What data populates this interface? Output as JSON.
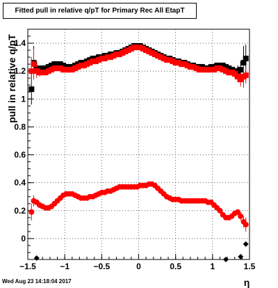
{
  "title": "Fitted pull in relative q/pT for Primary Rec All EtapT",
  "timestamp": "Wed Aug 23 14:18:04 2017",
  "chart_data": {
    "type": "scatter",
    "title": "Fitted pull in relative q/pT for Primary Rec All EtapT",
    "xlabel": "η",
    "ylabel": "pull in relative q/pT",
    "xlim": [
      -1.5,
      1.5
    ],
    "ylim": [
      -0.15,
      1.5
    ],
    "grid": true,
    "xticks": [
      -1.5,
      -1,
      -0.5,
      0,
      0.5,
      1,
      1.5
    ],
    "xtick_labels": [
      "−1.5",
      "−1",
      "−0.5",
      "0",
      "0.5",
      "1",
      "1.5"
    ],
    "yticks": [
      0,
      0.2,
      0.4,
      0.6,
      0.8,
      1,
      1.2,
      1.4
    ],
    "ytick_labels": [
      "0",
      "0.2",
      "0.4",
      "0.6",
      "0.8",
      "1",
      "1.2",
      "1.4"
    ],
    "series": [
      {
        "role": "sigma-black",
        "marker": "square",
        "color": "#000000",
        "x": [
          -1.45,
          -1.42,
          -1.38,
          -1.34,
          -1.3,
          -1.26,
          -1.22,
          -1.18,
          -1.14,
          -1.1,
          -1.06,
          -1.02,
          -0.98,
          -0.94,
          -0.9,
          -0.86,
          -0.82,
          -0.78,
          -0.74,
          -0.7,
          -0.66,
          -0.62,
          -0.58,
          -0.54,
          -0.5,
          -0.46,
          -0.42,
          -0.38,
          -0.34,
          -0.3,
          -0.26,
          -0.22,
          -0.18,
          -0.14,
          -0.1,
          -0.06,
          -0.02,
          0.02,
          0.06,
          0.1,
          0.14,
          0.18,
          0.22,
          0.26,
          0.3,
          0.34,
          0.38,
          0.42,
          0.46,
          0.5,
          0.54,
          0.58,
          0.62,
          0.66,
          0.7,
          0.74,
          0.78,
          0.82,
          0.86,
          0.9,
          0.94,
          0.98,
          1.02,
          1.06,
          1.1,
          1.14,
          1.18,
          1.22,
          1.26,
          1.3,
          1.34,
          1.38,
          1.42,
          1.45
        ],
        "y": [
          1.07,
          1.26,
          1.22,
          1.21,
          1.22,
          1.22,
          1.23,
          1.24,
          1.25,
          1.25,
          1.25,
          1.24,
          1.23,
          1.23,
          1.23,
          1.24,
          1.25,
          1.26,
          1.26,
          1.27,
          1.28,
          1.29,
          1.29,
          1.3,
          1.3,
          1.31,
          1.31,
          1.32,
          1.32,
          1.33,
          1.33,
          1.34,
          1.35,
          1.36,
          1.37,
          1.38,
          1.38,
          1.38,
          1.37,
          1.36,
          1.35,
          1.34,
          1.33,
          1.32,
          1.31,
          1.3,
          1.29,
          1.29,
          1.28,
          1.27,
          1.27,
          1.26,
          1.26,
          1.25,
          1.24,
          1.24,
          1.23,
          1.23,
          1.23,
          1.22,
          1.22,
          1.23,
          1.23,
          1.24,
          1.24,
          1.24,
          1.23,
          1.22,
          1.21,
          1.2,
          1.2,
          1.21,
          1.26,
          1.29
        ],
        "err": [
          0.11,
          0.12,
          0.05,
          0.03,
          0.02,
          0.02,
          0.02,
          0.02,
          0.02,
          0.02,
          0.02,
          0.02,
          0.02,
          0.02,
          0.02,
          0.02,
          0.02,
          0.02,
          0.02,
          0.02,
          0.02,
          0.02,
          0.02,
          0.02,
          0.02,
          0.02,
          0.02,
          0.02,
          0.02,
          0.02,
          0.02,
          0.02,
          0.02,
          0.02,
          0.02,
          0.02,
          0.02,
          0.02,
          0.02,
          0.02,
          0.02,
          0.02,
          0.02,
          0.02,
          0.02,
          0.02,
          0.02,
          0.02,
          0.02,
          0.02,
          0.02,
          0.02,
          0.02,
          0.02,
          0.02,
          0.02,
          0.02,
          0.02,
          0.02,
          0.02,
          0.02,
          0.02,
          0.02,
          0.02,
          0.02,
          0.02,
          0.02,
          0.02,
          0.02,
          0.03,
          0.04,
          0.06,
          0.12,
          0.1
        ]
      },
      {
        "role": "sigma-red",
        "marker": "square",
        "color": "#ff0000",
        "x": [
          -1.45,
          -1.42,
          -1.38,
          -1.34,
          -1.3,
          -1.26,
          -1.22,
          -1.18,
          -1.14,
          -1.1,
          -1.06,
          -1.02,
          -0.98,
          -0.94,
          -0.9,
          -0.86,
          -0.82,
          -0.78,
          -0.74,
          -0.7,
          -0.66,
          -0.62,
          -0.58,
          -0.54,
          -0.5,
          -0.46,
          -0.42,
          -0.38,
          -0.34,
          -0.3,
          -0.26,
          -0.22,
          -0.18,
          -0.14,
          -0.1,
          -0.06,
          -0.02,
          0.02,
          0.06,
          0.1,
          0.14,
          0.18,
          0.22,
          0.26,
          0.3,
          0.34,
          0.38,
          0.42,
          0.46,
          0.5,
          0.54,
          0.58,
          0.62,
          0.66,
          0.7,
          0.74,
          0.78,
          0.82,
          0.86,
          0.9,
          0.94,
          0.98,
          1.02,
          1.06,
          1.1,
          1.14,
          1.18,
          1.22,
          1.26,
          1.3,
          1.34,
          1.38,
          1.42,
          1.45
        ],
        "y": [
          1.2,
          1.25,
          1.2,
          1.19,
          1.19,
          1.19,
          1.2,
          1.21,
          1.22,
          1.22,
          1.22,
          1.21,
          1.21,
          1.21,
          1.21,
          1.22,
          1.23,
          1.24,
          1.24,
          1.25,
          1.26,
          1.27,
          1.27,
          1.28,
          1.29,
          1.29,
          1.3,
          1.3,
          1.31,
          1.32,
          1.32,
          1.33,
          1.34,
          1.35,
          1.36,
          1.37,
          1.37,
          1.37,
          1.36,
          1.35,
          1.34,
          1.33,
          1.32,
          1.31,
          1.3,
          1.29,
          1.28,
          1.28,
          1.27,
          1.26,
          1.26,
          1.25,
          1.25,
          1.24,
          1.23,
          1.23,
          1.22,
          1.21,
          1.21,
          1.21,
          1.21,
          1.21,
          1.21,
          1.22,
          1.22,
          1.21,
          1.2,
          1.19,
          1.19,
          1.18,
          1.16,
          1.14,
          1.16,
          1.17
        ],
        "err": [
          0.1,
          0.11,
          0.05,
          0.03,
          0.02,
          0.02,
          0.02,
          0.02,
          0.02,
          0.02,
          0.02,
          0.02,
          0.02,
          0.02,
          0.02,
          0.02,
          0.02,
          0.02,
          0.02,
          0.02,
          0.02,
          0.02,
          0.02,
          0.02,
          0.02,
          0.02,
          0.02,
          0.02,
          0.02,
          0.02,
          0.02,
          0.02,
          0.02,
          0.02,
          0.02,
          0.02,
          0.02,
          0.02,
          0.02,
          0.02,
          0.02,
          0.02,
          0.02,
          0.02,
          0.02,
          0.02,
          0.02,
          0.02,
          0.02,
          0.02,
          0.02,
          0.02,
          0.02,
          0.02,
          0.02,
          0.02,
          0.02,
          0.02,
          0.02,
          0.02,
          0.02,
          0.02,
          0.02,
          0.02,
          0.02,
          0.02,
          0.02,
          0.02,
          0.02,
          0.03,
          0.04,
          0.05,
          0.08,
          0.06
        ]
      },
      {
        "role": "mean-red",
        "marker": "circle",
        "color": "#ff0000",
        "x": [
          -1.45,
          -1.42,
          -1.38,
          -1.34,
          -1.3,
          -1.26,
          -1.22,
          -1.18,
          -1.14,
          -1.1,
          -1.06,
          -1.02,
          -0.98,
          -0.94,
          -0.9,
          -0.86,
          -0.82,
          -0.78,
          -0.74,
          -0.7,
          -0.66,
          -0.62,
          -0.58,
          -0.54,
          -0.5,
          -0.46,
          -0.42,
          -0.38,
          -0.34,
          -0.3,
          -0.26,
          -0.22,
          -0.18,
          -0.14,
          -0.1,
          -0.06,
          -0.02,
          0.02,
          0.06,
          0.1,
          0.14,
          0.18,
          0.22,
          0.26,
          0.3,
          0.34,
          0.38,
          0.42,
          0.46,
          0.5,
          0.54,
          0.58,
          0.62,
          0.66,
          0.7,
          0.74,
          0.78,
          0.82,
          0.86,
          0.9,
          0.94,
          0.98,
          1.02,
          1.06,
          1.1,
          1.14,
          1.18,
          1.22,
          1.26,
          1.3,
          1.34,
          1.38,
          1.42,
          1.45
        ],
        "y": [
          0.19,
          0.27,
          0.26,
          0.24,
          0.23,
          0.22,
          0.22,
          0.23,
          0.25,
          0.27,
          0.29,
          0.31,
          0.32,
          0.32,
          0.32,
          0.31,
          0.3,
          0.29,
          0.29,
          0.29,
          0.3,
          0.3,
          0.31,
          0.32,
          0.33,
          0.33,
          0.34,
          0.34,
          0.35,
          0.36,
          0.37,
          0.37,
          0.37,
          0.37,
          0.37,
          0.37,
          0.37,
          0.38,
          0.38,
          0.38,
          0.39,
          0.39,
          0.38,
          0.36,
          0.34,
          0.32,
          0.3,
          0.29,
          0.28,
          0.28,
          0.28,
          0.27,
          0.27,
          0.27,
          0.27,
          0.27,
          0.27,
          0.27,
          0.27,
          0.27,
          0.26,
          0.26,
          0.24,
          0.22,
          0.2,
          0.17,
          0.15,
          0.15,
          0.16,
          0.18,
          0.19,
          0.16,
          0.12,
          0.1
        ],
        "err": [
          0.06,
          0.04,
          0.02,
          0.02,
          0.01,
          0.01,
          0.01,
          0.01,
          0.01,
          0.01,
          0.01,
          0.01,
          0.01,
          0.01,
          0.01,
          0.01,
          0.01,
          0.01,
          0.01,
          0.01,
          0.01,
          0.01,
          0.01,
          0.01,
          0.01,
          0.01,
          0.01,
          0.01,
          0.01,
          0.01,
          0.01,
          0.01,
          0.01,
          0.01,
          0.01,
          0.01,
          0.01,
          0.01,
          0.01,
          0.01,
          0.01,
          0.01,
          0.01,
          0.01,
          0.01,
          0.01,
          0.01,
          0.01,
          0.01,
          0.01,
          0.01,
          0.01,
          0.01,
          0.01,
          0.01,
          0.01,
          0.01,
          0.01,
          0.01,
          0.01,
          0.01,
          0.01,
          0.01,
          0.01,
          0.01,
          0.01,
          0.01,
          0.01,
          0.01,
          0.01,
          0.02,
          0.03,
          0.04,
          0.05
        ]
      },
      {
        "role": "mean-black",
        "marker": "diamond",
        "color": "#000000",
        "x": [
          -1.38,
          1.18,
          1.38,
          1.45
        ],
        "y": [
          -0.14,
          -0.15,
          -0.13,
          -0.04
        ],
        "err": [
          0.0,
          0.0,
          0.0,
          0.0
        ]
      }
    ]
  }
}
